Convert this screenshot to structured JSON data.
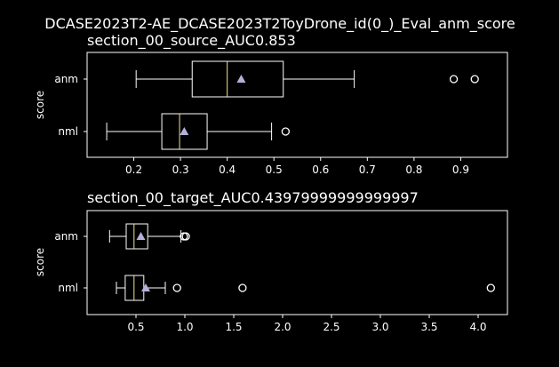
{
  "figure": {
    "suptitle": "DCASE2023T2-AE_DCASE2023T2ToyDrone_id(0_)_Eval_anm_score",
    "background": "#000000",
    "foreground": "#ffffff",
    "median_color": "#f0e68c",
    "mean_marker_color": "#b5b0da"
  },
  "chart_data": [
    {
      "type": "box",
      "orientation": "horizontal",
      "title": "section_00_source_AUC0.853",
      "ylabel": "score",
      "xlim": [
        0.1,
        1.0
      ],
      "xticks": [
        0.2,
        0.3,
        0.4,
        0.5,
        0.6,
        0.7,
        0.8,
        0.9
      ],
      "xtick_labels": [
        "0.2",
        "0.3",
        "0.4",
        "0.5",
        "0.6",
        "0.7",
        "0.8",
        "0.9"
      ],
      "categories": [
        "anm",
        "nml"
      ],
      "boxes": [
        {
          "label": "anm",
          "whisker_low": 0.205,
          "q1": 0.325,
          "median": 0.4,
          "q3": 0.52,
          "whisker_high": 0.672,
          "mean": 0.43,
          "outliers": [
            0.885,
            0.93
          ]
        },
        {
          "label": "nml",
          "whisker_low": 0.142,
          "q1": 0.26,
          "median": 0.298,
          "q3": 0.357,
          "whisker_high": 0.495,
          "mean": 0.308,
          "outliers": [
            0.525
          ]
        }
      ]
    },
    {
      "type": "box",
      "orientation": "horizontal",
      "title": "section_00_target_AUC0.43979999999999997",
      "ylabel": "score",
      "xlim": [
        0.0,
        4.3
      ],
      "xticks": [
        0.5,
        1.0,
        1.5,
        2.0,
        2.5,
        3.0,
        3.5,
        4.0
      ],
      "xtick_labels": [
        "0.5",
        "1.0",
        "1.5",
        "2.0",
        "2.5",
        "3.0",
        "3.5",
        "4.0"
      ],
      "categories": [
        "anm",
        "nml"
      ],
      "boxes": [
        {
          "label": "anm",
          "whisker_low": 0.23,
          "q1": 0.4,
          "median": 0.48,
          "q3": 0.62,
          "whisker_high": 0.96,
          "mean": 0.55,
          "outliers": [
            0.99,
            1.01
          ]
        },
        {
          "label": "nml",
          "whisker_low": 0.3,
          "q1": 0.39,
          "median": 0.48,
          "q3": 0.58,
          "whisker_high": 0.8,
          "mean": 0.6,
          "outliers": [
            0.92,
            1.59,
            4.13
          ]
        }
      ]
    }
  ]
}
